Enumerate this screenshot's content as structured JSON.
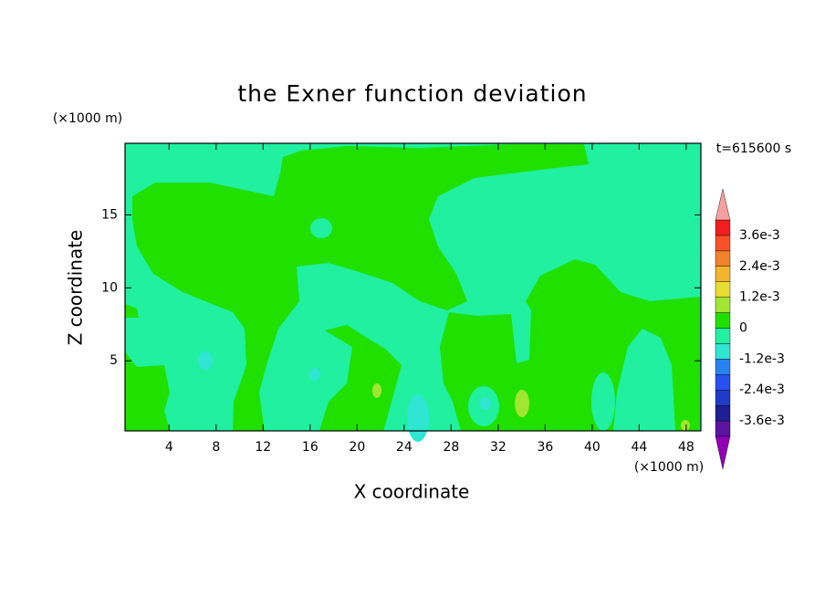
{
  "chart_data": {
    "type": "contour",
    "title": "the Exner function deviation",
    "x_label": "X coordinate",
    "y_label": "Z coordinate",
    "x_unit": "(×1000 m)",
    "y_unit": "(×1000 m)",
    "time_label": "t=615600 s",
    "xlim": [
      0.25,
      49.25
    ],
    "ylim": [
      0.2,
      19.9
    ],
    "xticks": [
      4,
      8,
      12,
      16,
      20,
      24,
      28,
      32,
      36,
      40,
      44,
      48
    ],
    "yticks": [
      5,
      10,
      15
    ],
    "levels": [
      -0.0042,
      -0.0036,
      -0.003,
      -0.0024,
      -0.0018,
      -0.0012,
      -0.0006,
      0,
      0.0006,
      0.0012,
      0.0018,
      0.0024,
      0.003,
      0.0036,
      0.0042
    ],
    "colors": [
      "#9000b4",
      "#5a14a0",
      "#1e1e96",
      "#1e3cc8",
      "#2850f0",
      "#2882f0",
      "#2ee6d2",
      "#20f0a0",
      "#20e000",
      "#a0e632",
      "#e6dc32",
      "#f0b42d",
      "#f08228",
      "#fa5028",
      "#f01e1e",
      "#f5a0a0"
    ],
    "colorbar_ticks": [
      {
        "value": 0.0036,
        "label": "3.6e-3"
      },
      {
        "value": 0.0024,
        "label": "2.4e-3"
      },
      {
        "value": 0.0012,
        "label": "1.2e-3"
      },
      0,
      {
        "value": -0.0012,
        "label": "-1.2e-3"
      },
      {
        "value": -0.0024,
        "label": "-2.4e-3"
      },
      {
        "value": -0.0036,
        "label": "-3.6e-3"
      }
    ]
  }
}
